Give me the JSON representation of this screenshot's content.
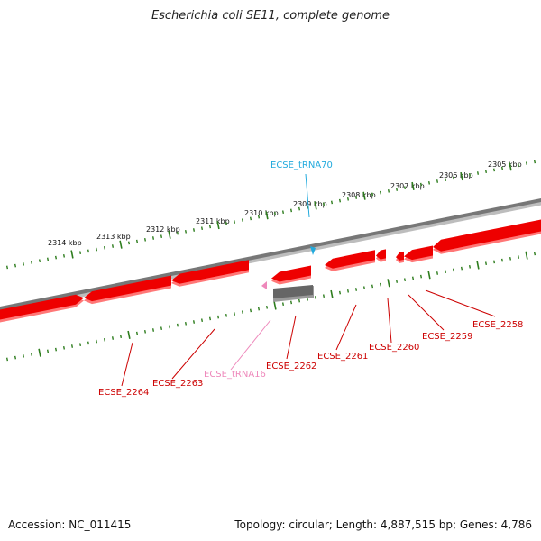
{
  "title": "Escherichia coli SE11, complete genome",
  "footer": {
    "accession": "Accession: NC_011415",
    "topology": "Topology: circular; Length: 4,887,515 bp; Genes: 4,786"
  },
  "colors": {
    "backbone": "#777777",
    "gene": "#ee0000",
    "gene_shadow": "#ff7777",
    "gene_gray": "#666666",
    "ticks": "#2e7d1e",
    "trna_forward": "#22aadd",
    "trna_reverse": "#ee88bb",
    "label_gene": "#cc0000"
  },
  "scale_labels": [
    "2314 kbp",
    "2313 kbp",
    "2312 kbp",
    "2311 kbp",
    "2310 kbp",
    "2309 kbp",
    "2308 kbp",
    "2307 kbp",
    "2306 kbp",
    "2305 kbp"
  ],
  "feature_labels": {
    "trna70": "ECSE_tRNA70",
    "trna16": "ECSE_tRNA16",
    "g2264": "ECSE_2264",
    "g2263": "ECSE_2263",
    "g2262": "ECSE_2262",
    "g2261": "ECSE_2261",
    "g2260": "ECSE_2260",
    "g2259": "ECSE_2259",
    "g2258": "ECSE_2258"
  }
}
